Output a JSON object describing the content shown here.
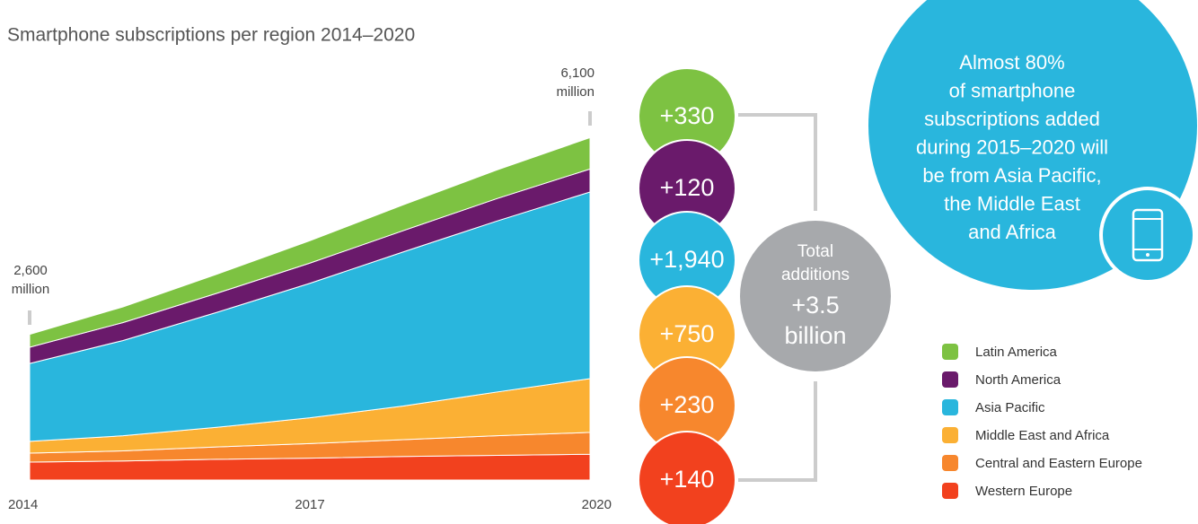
{
  "chart_data": {
    "type": "stacked_area",
    "title": "Smartphone subscriptions per region 2014–2020",
    "x": [
      2014,
      2015,
      2016,
      2017,
      2018,
      2019,
      2020
    ],
    "xlim": [
      2014,
      2020
    ],
    "xticks": [
      2014,
      2017,
      2020
    ],
    "ylim": [
      0,
      6500
    ],
    "series": [
      {
        "name": "Latin America",
        "color": "#7dc242",
        "values": [
          230,
          280,
          340,
          400,
          460,
          510,
          560
        ]
      },
      {
        "name": "North America",
        "color": "#6a1a6b",
        "values": [
          290,
          320,
          340,
          360,
          380,
          400,
          410
        ]
      },
      {
        "name": "Asia Pacific",
        "color": "#29b6dd",
        "values": [
          1390,
          1700,
          2050,
          2400,
          2750,
          3050,
          3330
        ]
      },
      {
        "name": "Middle East and Africa",
        "color": "#fbb034",
        "values": [
          210,
          270,
          350,
          460,
          600,
          780,
          960
        ]
      },
      {
        "name": "Central and Eastern Europe",
        "color": "#f7872d",
        "values": [
          160,
          180,
          220,
          260,
          300,
          350,
          390
        ]
      },
      {
        "name": "Western Europe",
        "color": "#f2411e",
        "values": [
          320,
          340,
          370,
          390,
          420,
          440,
          460
        ]
      }
    ],
    "additions": [
      330,
      120,
      1940,
      750,
      230,
      140
    ],
    "addition_labels": [
      "+330",
      "+120",
      "+1,940",
      "+750",
      "+230",
      "+140"
    ],
    "start_annotation": [
      "2,600",
      "million"
    ],
    "end_annotation": [
      "6,100",
      "million"
    ],
    "total_lines": [
      "Total",
      "additions",
      "+3.5",
      "billion"
    ],
    "callout_lines": [
      "Almost 80%",
      "of smartphone",
      "subscriptions added",
      "during 2015–2020 will",
      "be from Asia Pacific,",
      "the Middle East",
      "and Africa"
    ]
  }
}
